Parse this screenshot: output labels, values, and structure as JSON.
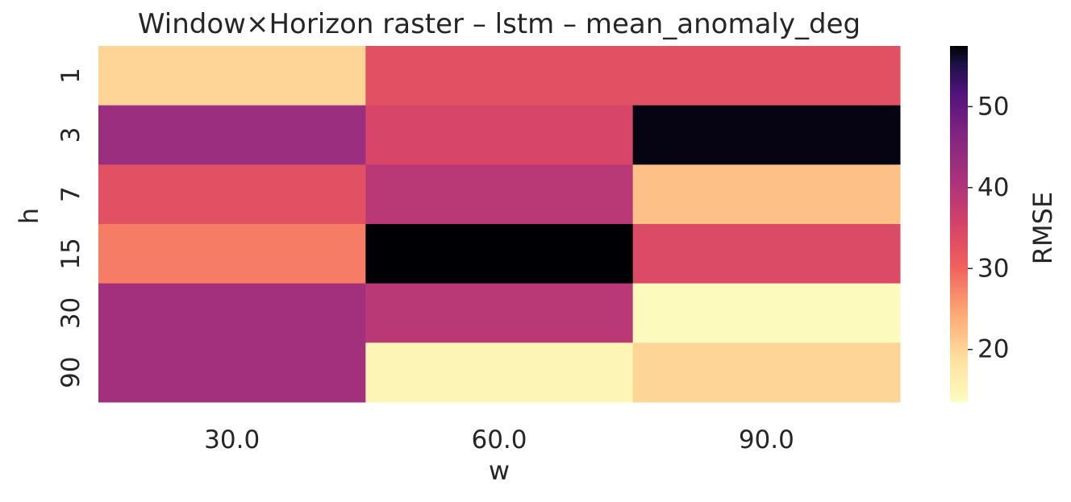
{
  "chart_data": {
    "type": "heatmap",
    "title": "Window×Horizon raster – lstm – mean_anomaly_deg",
    "xlabel": "w",
    "ylabel": "h",
    "x_categories": [
      "30.0",
      "60.0",
      "90.0"
    ],
    "y_categories": [
      "1",
      "3",
      "7",
      "15",
      "30",
      "90"
    ],
    "values": [
      [
        20,
        33,
        33
      ],
      [
        43,
        35,
        57
      ],
      [
        33,
        39,
        22
      ],
      [
        28,
        58,
        34
      ],
      [
        42,
        39,
        14
      ],
      [
        42,
        15,
        20
      ]
    ],
    "colorbar": {
      "label": "RMSE",
      "vmin": 13.5,
      "vmax": 57.5,
      "ticks": [
        "20",
        "30",
        "40",
        "50"
      ],
      "tick_values": [
        20,
        30,
        40,
        50
      ]
    },
    "colormap": "magma_r"
  }
}
